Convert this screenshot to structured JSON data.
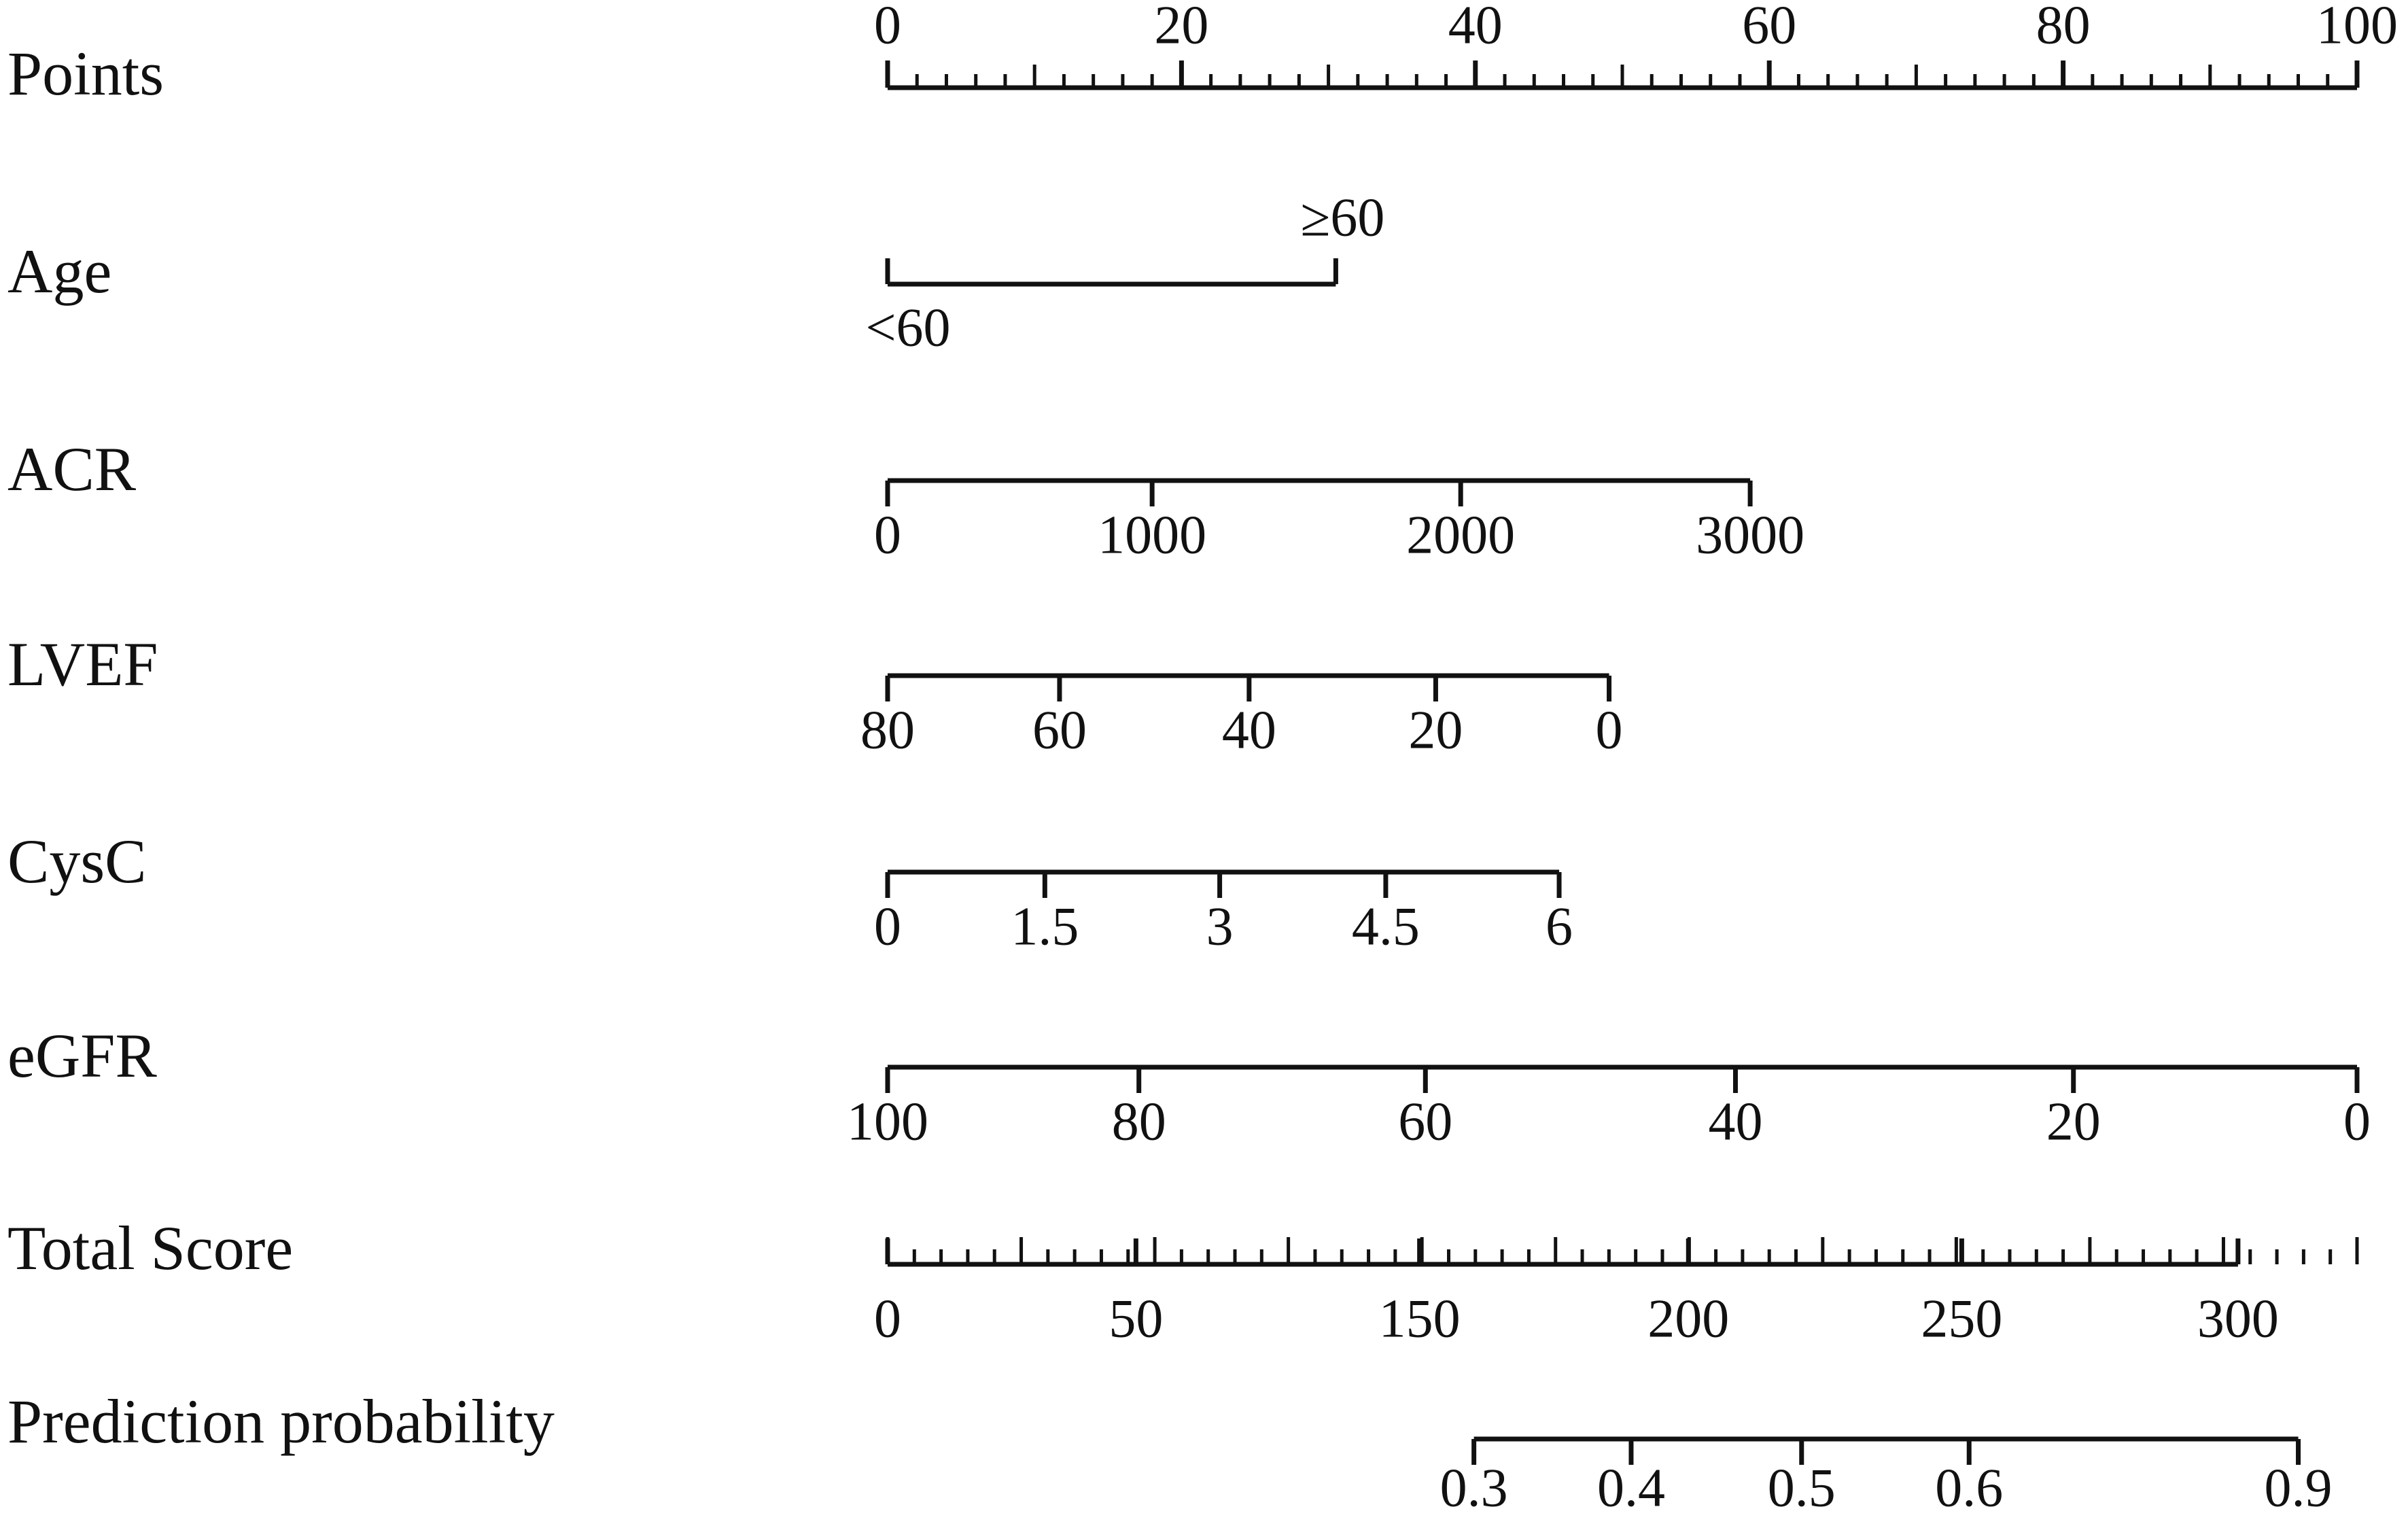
{
  "chart_data": {
    "type": "nomogram",
    "xlim": [
      0,
      100
    ],
    "rows": [
      {
        "name": "Points",
        "ticks": [
          0,
          20,
          40,
          60,
          80,
          100
        ]
      },
      {
        "name": "Age",
        "labels": [
          "<60",
          "≥60"
        ],
        "points": [
          0,
          30.5
        ]
      },
      {
        "name": "ACR",
        "labels": [
          0,
          1000,
          2000,
          3000
        ],
        "points": [
          0,
          18,
          39,
          58.7
        ]
      },
      {
        "name": "LVEF",
        "labels": [
          80,
          60,
          40,
          20,
          0
        ],
        "points": [
          0,
          11.7,
          24.6,
          37.3,
          49.1
        ]
      },
      {
        "name": "CysC",
        "labels": [
          0,
          1.5,
          3,
          4.5,
          6
        ],
        "points": [
          0,
          10.7,
          22.6,
          33.9,
          45.7
        ]
      },
      {
        "name": "eGFR",
        "labels": [
          100,
          80,
          60,
          40,
          20,
          0
        ],
        "points": [
          0,
          17.1,
          36.6,
          57.7,
          80.7,
          100
        ]
      },
      {
        "name": "Total Score",
        "labels": [
          0,
          50,
          150,
          200,
          250,
          300
        ],
        "points": [
          0,
          16.9,
          36.2,
          54.5,
          73.1,
          91.9
        ]
      },
      {
        "name": "Prediction probability",
        "labels": [
          0.3,
          0.4,
          0.5,
          0.6,
          0.9
        ],
        "points": [
          39.9,
          50.6,
          62.2,
          73.6,
          96
        ]
      }
    ]
  }
}
